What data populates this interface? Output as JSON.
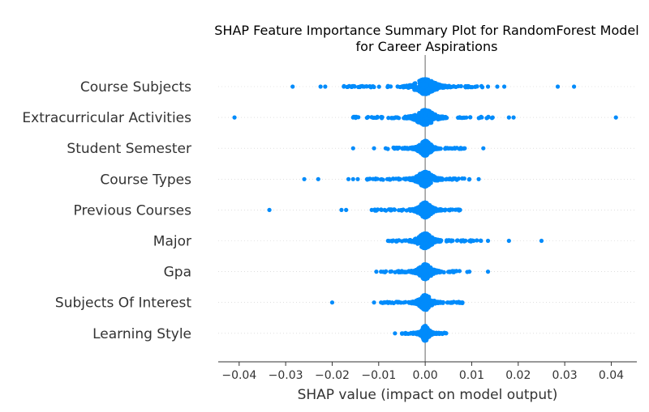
{
  "chart_data": {
    "type": "scatter",
    "title_lines": [
      "SHAP Feature Importance Summary Plot for RandomForest Model",
      "for Career Aspirations"
    ],
    "xlabel": "SHAP value (impact on model output)",
    "xlim": [
      -0.0445,
      0.0455
    ],
    "xticks": [
      -0.04,
      -0.03,
      -0.02,
      -0.01,
      0.0,
      0.01,
      0.02,
      0.03,
      0.04
    ],
    "xtick_labels": [
      "−0.04",
      "−0.03",
      "−0.02",
      "−0.01",
      "0.00",
      "0.01",
      "0.02",
      "0.03",
      "0.04"
    ],
    "grid": false,
    "point_color": "#008bfb",
    "zero_line_color": "#999999",
    "features": [
      {
        "name": "Course Subjects",
        "min": -0.0175,
        "max": 0.0135,
        "core": 0.002,
        "outliers": [
          -0.0285,
          -0.0225,
          -0.0215,
          0.0155,
          0.017,
          0.0285,
          0.032
        ]
      },
      {
        "name": "Extracurricular Activities",
        "min": -0.0155,
        "max": 0.0145,
        "core": 0.0018,
        "outliers": [
          -0.041,
          0.018,
          0.019,
          0.041
        ]
      },
      {
        "name": "Student Semester",
        "min": -0.0085,
        "max": 0.0085,
        "core": 0.0012,
        "outliers": [
          -0.0155,
          -0.011,
          0.0125
        ]
      },
      {
        "name": "Course Types",
        "min": -0.0125,
        "max": 0.0095,
        "core": 0.0015,
        "outliers": [
          -0.026,
          -0.023,
          -0.0165,
          -0.0155,
          -0.0145,
          0.0115
        ]
      },
      {
        "name": "Previous Courses",
        "min": -0.0115,
        "max": 0.0075,
        "core": 0.0013,
        "outliers": [
          -0.0335,
          -0.018,
          -0.017
        ]
      },
      {
        "name": "Major",
        "min": -0.008,
        "max": 0.012,
        "core": 0.0014,
        "outliers": [
          0.0135,
          0.018,
          0.025
        ]
      },
      {
        "name": "Gpa",
        "min": -0.0095,
        "max": 0.0095,
        "core": 0.0013,
        "outliers": [
          -0.0105,
          0.0135
        ]
      },
      {
        "name": "Subjects Of Interest",
        "min": -0.0095,
        "max": 0.008,
        "core": 0.0012,
        "outliers": [
          -0.02,
          -0.011
        ]
      },
      {
        "name": "Learning Style",
        "min": -0.005,
        "max": 0.0045,
        "core": 0.0008,
        "outliers": [
          -0.0065
        ]
      }
    ]
  }
}
